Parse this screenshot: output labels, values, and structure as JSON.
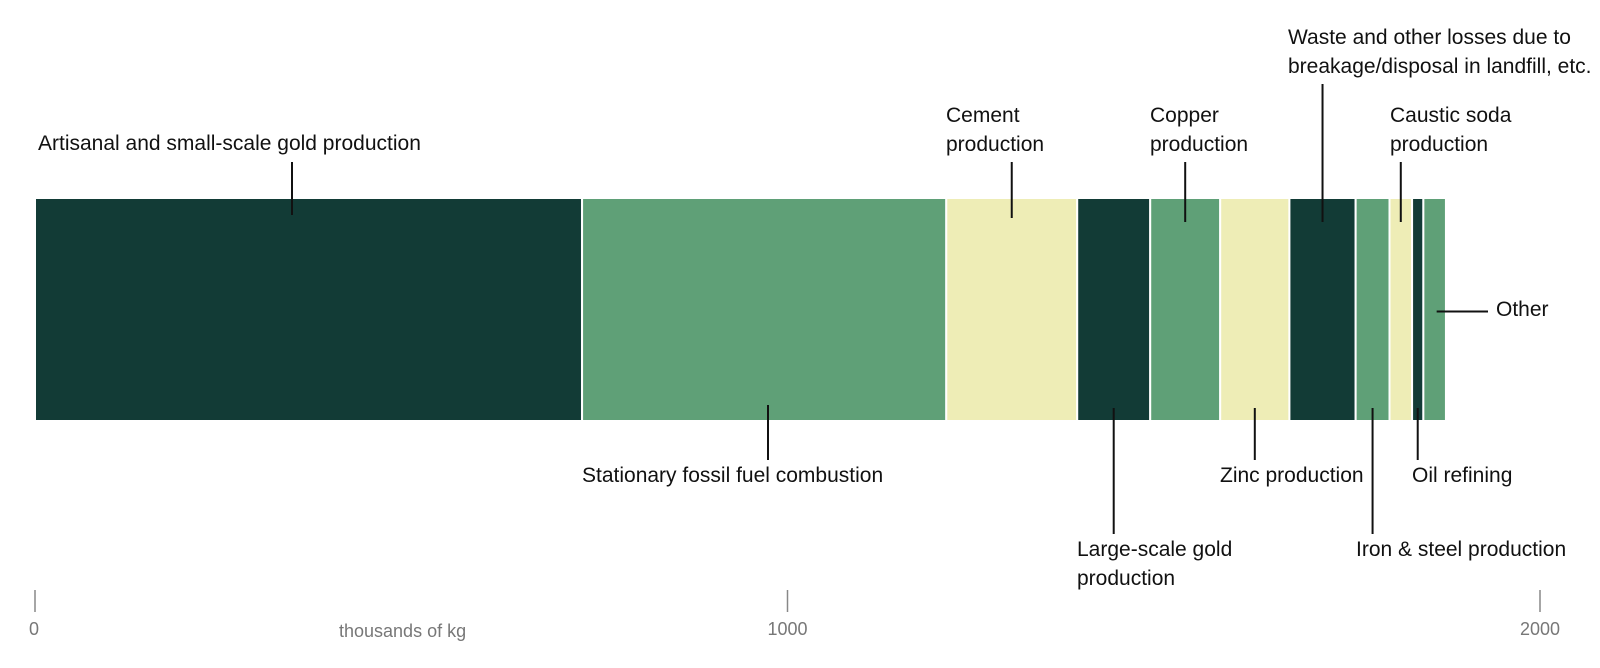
{
  "colors": {
    "dark": "#123b36",
    "mid": "#5fa077",
    "light": "#eeedb6"
  },
  "chart_data": {
    "type": "bar",
    "orientation": "horizontal-stacked",
    "title": "",
    "xlabel": "thousands of kg",
    "ylabel": "",
    "xlim": [
      0,
      2000
    ],
    "x_ticks": [
      0,
      1000,
      2000
    ],
    "x_tick_labels": [
      "0",
      "1000",
      "2000"
    ],
    "grid": false,
    "legend": "none",
    "series": [
      {
        "name": "Artisanal and small-scale gold production",
        "value": 727,
        "color": "dark"
      },
      {
        "name": "Stationary fossil fuel combustion",
        "value": 484,
        "color": "mid"
      },
      {
        "name": "Cement production",
        "value": 174,
        "color": "light"
      },
      {
        "name": "Large-scale gold production",
        "value": 97,
        "color": "dark"
      },
      {
        "name": "Copper production",
        "value": 93,
        "color": "mid"
      },
      {
        "name": "Zinc production",
        "value": 92,
        "color": "light"
      },
      {
        "name": "Waste and other losses due to breakage/disposal in landfill, etc.",
        "value": 88,
        "color": "dark"
      },
      {
        "name": "Iron & steel production",
        "value": 45,
        "color": "mid"
      },
      {
        "name": "Caustic soda production",
        "value": 30,
        "color": "light"
      },
      {
        "name": "Oil refining",
        "value": 15,
        "color": "dark"
      },
      {
        "name": "Other",
        "value": 30,
        "color": "mid"
      }
    ]
  }
}
